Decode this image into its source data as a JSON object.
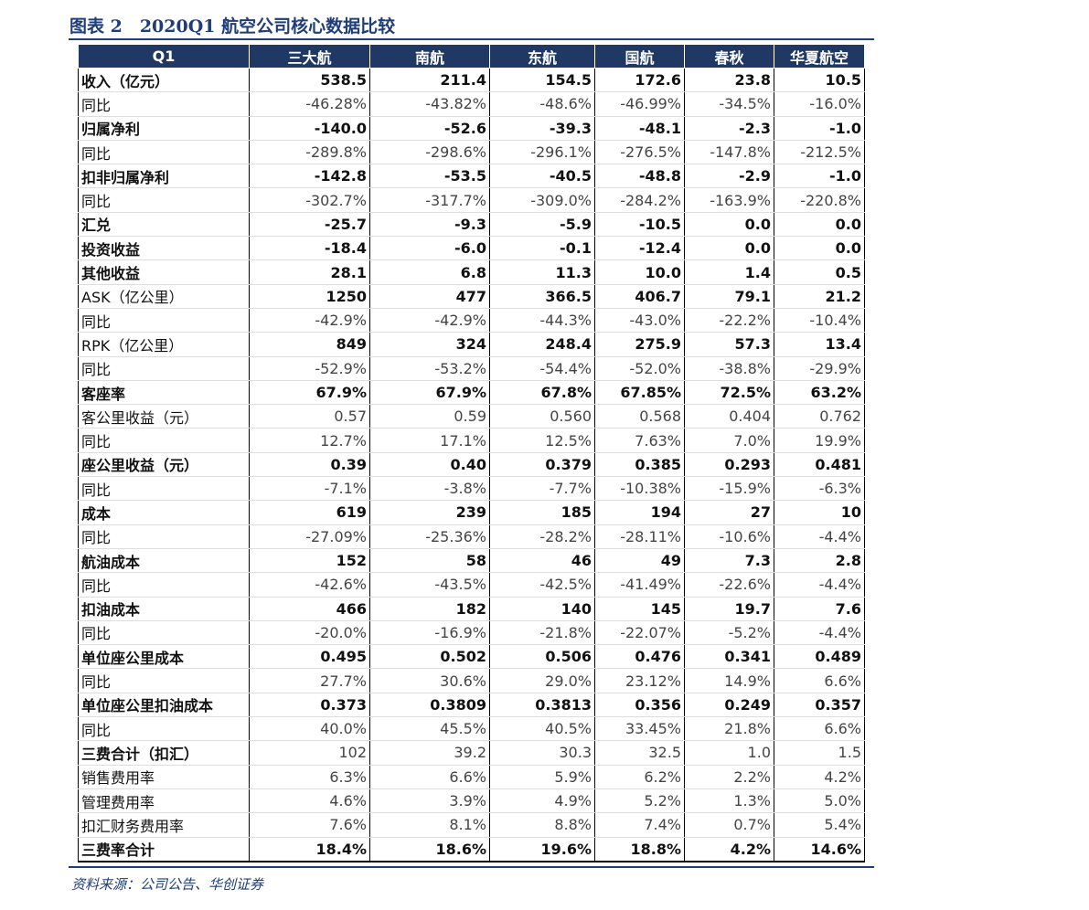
{
  "header": {
    "title": "图表 2　2020Q1 航空公司核心数据比较"
  },
  "table": {
    "columns": [
      "Q1",
      "三大航",
      "南航",
      "东航",
      "国航",
      "春秋",
      "华夏航空"
    ],
    "rows": [
      [
        "收入（亿元）",
        "538.5",
        "211.4",
        "154.5",
        "172.6",
        "23.8",
        "10.5"
      ],
      [
        "同比",
        "-46.28%",
        "-43.82%",
        "-48.6%",
        "-46.99%",
        "-34.5%",
        "-16.0%"
      ],
      [
        "归属净利",
        "-140.0",
        "-52.6",
        "-39.3",
        "-48.1",
        "-2.3",
        "-1.0"
      ],
      [
        "同比",
        "-289.8%",
        "-298.6%",
        "-296.1%",
        "-276.5%",
        "-147.8%",
        "-212.5%"
      ],
      [
        "扣非归属净利",
        "-142.8",
        "-53.5",
        "-40.5",
        "-48.8",
        "-2.9",
        "-1.0"
      ],
      [
        "同比",
        "-302.7%",
        "-317.7%",
        "-309.0%",
        "-284.2%",
        "-163.9%",
        "-220.8%"
      ],
      [
        "汇兑",
        "-25.7",
        "-9.3",
        "-5.9",
        "-10.5",
        "0.0",
        "0.0"
      ],
      [
        "投资收益",
        "-18.4",
        "-6.0",
        "-0.1",
        "-12.4",
        "0.0",
        "0.0"
      ],
      [
        "其他收益",
        "28.1",
        "6.8",
        "11.3",
        "10.0",
        "1.4",
        "0.5"
      ],
      [
        "ASK（亿公里）",
        "1250",
        "477",
        "366.5",
        "406.7",
        "79.1",
        "21.2"
      ],
      [
        "同比",
        "-42.9%",
        "-42.9%",
        "-44.3%",
        "-43.0%",
        "-22.2%",
        "-10.4%"
      ],
      [
        "RPK（亿公里）",
        "849",
        "324",
        "248.4",
        "275.9",
        "57.3",
        "13.4"
      ],
      [
        "同比",
        "-52.9%",
        "-53.2%",
        "-54.4%",
        "-52.0%",
        "-38.8%",
        "-29.9%"
      ],
      [
        "客座率",
        "67.9%",
        "67.9%",
        "67.8%",
        "67.85%",
        "72.5%",
        "63.2%"
      ],
      [
        "客公里收益（元）",
        "0.57",
        "0.59",
        "0.560",
        "0.568",
        "0.404",
        "0.762"
      ],
      [
        "同比",
        "12.7%",
        "17.1%",
        "12.5%",
        "7.63%",
        "7.0%",
        "19.9%"
      ],
      [
        "座公里收益（元）",
        "0.39",
        "0.40",
        "0.379",
        "0.385",
        "0.293",
        "0.481"
      ],
      [
        "同比",
        "-7.1%",
        "-3.8%",
        "-7.7%",
        "-10.38%",
        "-15.9%",
        "-6.3%"
      ],
      [
        "成本",
        "619",
        "239",
        "185",
        "194",
        "27",
        "10"
      ],
      [
        "同比",
        "-27.09%",
        "-25.36%",
        "-28.2%",
        "-28.11%",
        "-10.6%",
        "-4.4%"
      ],
      [
        "航油成本",
        "152",
        "58",
        "46",
        "49",
        "7.3",
        "2.8"
      ],
      [
        "同比",
        "-42.6%",
        "-43.5%",
        "-42.5%",
        "-41.49%",
        "-22.6%",
        "-4.4%"
      ],
      [
        "扣油成本",
        "466",
        "182",
        "140",
        "145",
        "19.7",
        "7.6"
      ],
      [
        "同比",
        "-20.0%",
        "-16.9%",
        "-21.8%",
        "-22.07%",
        "-5.2%",
        "-4.4%"
      ],
      [
        "单位座公里成本",
        "0.495",
        "0.502",
        "0.506",
        "0.476",
        "0.341",
        "0.489"
      ],
      [
        "同比",
        "27.7%",
        "30.6%",
        "29.0%",
        "23.12%",
        "14.9%",
        "6.6%"
      ],
      [
        "单位座公里扣油成本",
        "0.373",
        "0.3809",
        "0.3813",
        "0.356",
        "0.249",
        "0.357"
      ],
      [
        "同比",
        "40.0%",
        "45.5%",
        "40.5%",
        "33.45%",
        "21.8%",
        "6.6%"
      ],
      [
        "三费合计（扣汇）",
        "102",
        "39.2",
        "30.3",
        "32.5",
        "1.0",
        "1.5"
      ],
      [
        "销售费用率",
        "6.3%",
        "6.6%",
        "5.9%",
        "6.2%",
        "2.2%",
        "4.2%"
      ],
      [
        "管理费用率",
        "4.6%",
        "3.9%",
        "4.9%",
        "5.2%",
        "1.3%",
        "5.0%"
      ],
      [
        "扣汇财务费用率",
        "7.6%",
        "8.1%",
        "8.8%",
        "7.4%",
        "0.7%",
        "5.4%"
      ],
      [
        "三费率合计",
        "18.4%",
        "18.6%",
        "19.6%",
        "18.8%",
        "4.2%",
        "14.6%"
      ]
    ]
  },
  "footer": {
    "source": "资料来源：公司公告、华创证券"
  }
}
